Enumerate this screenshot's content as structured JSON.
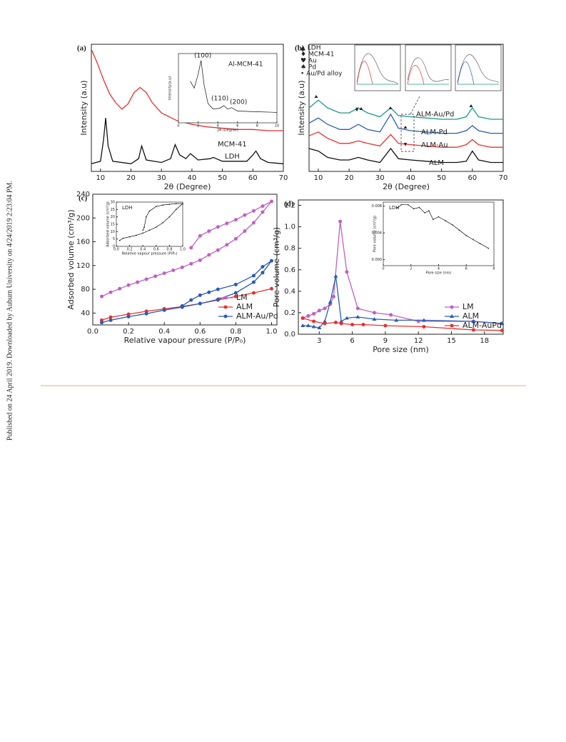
{
  "side_note": "Published on 24 April 2019. Downloaded by Auburn University on 4/24/2019 2:23:04 PM.",
  "chart_data": [
    {
      "type": "line",
      "panel_label": "(a)",
      "xlabel": "2θ (Degree)",
      "ylabel": "Intensity (a.u)",
      "xlim": [
        7,
        70
      ],
      "xticks": [
        10,
        20,
        30,
        40,
        50,
        60,
        70
      ],
      "ylim": [
        0,
        100
      ],
      "series": [
        {
          "name": "MCM-41",
          "color": "#e83030",
          "x": [
            7,
            9,
            11,
            13,
            15,
            17,
            19,
            21,
            23,
            25,
            27,
            30,
            35,
            40,
            45,
            50,
            55,
            60,
            65,
            70
          ],
          "values": [
            96,
            85,
            72,
            61,
            54,
            49,
            53,
            62,
            66,
            62,
            54,
            46,
            40,
            37,
            35,
            34,
            33,
            33,
            32,
            32
          ]
        },
        {
          "name": "LDH",
          "color": "#111111",
          "x": [
            7,
            10,
            11,
            11.7,
            12.5,
            14,
            20,
            22.5,
            23.5,
            25,
            30,
            33,
            34.5,
            36,
            38,
            39.5,
            42,
            46,
            47,
            50,
            58,
            60,
            61,
            62.5,
            65,
            70
          ],
          "values": [
            6,
            8,
            25,
            42,
            20,
            8,
            6,
            10,
            20,
            9,
            7,
            10,
            21,
            13,
            10,
            14,
            9,
            10,
            11,
            8,
            8,
            13,
            16,
            10,
            7,
            6
          ]
        }
      ],
      "inset": {
        "type": "line",
        "title": "Al-MCM-41",
        "xlabel": "2θ (Degree)",
        "ylabel": "Intensity(a.u)",
        "xlim": [
          0,
          10
        ],
        "xticks": [
          0,
          2,
          4,
          6,
          8,
          10
        ],
        "ylim": [
          0,
          100
        ],
        "annotations": [
          "(100)",
          "(110)",
          "(200)"
        ],
        "series": [
          {
            "color": "#111111",
            "x": [
              1.2,
              1.6,
              2.0,
              2.3,
              2.6,
              3.0,
              3.5,
              4.2,
              4.6,
              5.0,
              5.4,
              6,
              8,
              10
            ],
            "values": [
              60,
              50,
              70,
              90,
              55,
              28,
              20,
              21,
              25,
              20,
              22,
              17,
              16,
              15
            ]
          }
        ]
      }
    },
    {
      "type": "line",
      "panel_label": "(b)",
      "xlabel": "2θ (Degree)",
      "ylabel": "Intensity (a.u)",
      "xlim": [
        7,
        70
      ],
      "xticks": [
        10,
        20,
        30,
        40,
        50,
        60,
        70
      ],
      "ylim": [
        0,
        100
      ],
      "phase_legend": [
        "▲ LDH",
        "♦ MCM-41",
        "♥ Au",
        "♠ Pd",
        "• Au/Pd alloy"
      ],
      "series": [
        {
          "name": "ALM-Au/Pd",
          "color": "#1a9a8a",
          "x": [
            7,
            10,
            13,
            17,
            20,
            23,
            26,
            30,
            33.5,
            36,
            40,
            45,
            50,
            55,
            58,
            60,
            62,
            66,
            70
          ],
          "values": [
            50,
            56,
            50,
            46,
            46,
            50,
            46,
            43,
            50,
            44,
            43,
            42,
            41,
            41,
            43,
            50,
            43,
            41,
            41
          ]
        },
        {
          "name": "ALM-Pd",
          "color": "#2a5cb8",
          "x": [
            7,
            10,
            13,
            17,
            20,
            23,
            26,
            30,
            33.5,
            36,
            40,
            45,
            50,
            55,
            58,
            60,
            62,
            66,
            70
          ],
          "values": [
            38,
            42,
            37,
            33,
            33,
            37,
            33,
            31,
            45,
            34,
            32,
            31,
            30,
            30,
            32,
            36,
            32,
            30,
            30
          ]
        },
        {
          "name": "ALM-Au",
          "color": "#e83030",
          "x": [
            7,
            10,
            13,
            17,
            20,
            23,
            26,
            30,
            33.5,
            36,
            40,
            45,
            50,
            55,
            58,
            60,
            62,
            66,
            70
          ],
          "values": [
            28,
            31,
            26,
            22,
            22,
            24,
            22,
            20,
            29,
            22,
            21,
            20,
            19,
            19,
            21,
            25,
            21,
            19,
            19
          ]
        },
        {
          "name": "ALM",
          "color": "#111111",
          "x": [
            7,
            10,
            13,
            17,
            20,
            23,
            26,
            30,
            33.5,
            36,
            40,
            45,
            50,
            55,
            58,
            60,
            62,
            66,
            70
          ],
          "values": [
            18,
            16,
            11,
            9,
            9,
            11,
            9,
            7,
            18,
            10,
            9,
            8,
            7,
            7,
            8,
            16,
            9,
            7,
            7
          ]
        }
      ]
    },
    {
      "type": "line",
      "panel_label": "(c)",
      "xlabel": "Relative vapour pressure (P/P₀)",
      "ylabel": "Adsorbed volume (cm³/g)",
      "xlim": [
        0,
        1.03
      ],
      "xticks": [
        {
          "value": 0,
          "label": "0.0"
        },
        0.2,
        0.4,
        0.6,
        0.8,
        {
          "value": 1,
          "label": "1.0"
        }
      ],
      "ylim": [
        20,
        240
      ],
      "yticks": [
        40,
        80,
        120,
        160,
        200,
        240
      ],
      "legend": "lower right",
      "series": [
        {
          "name": "LM",
          "color": "#c060c0",
          "marker": "circle",
          "x": [
            0.05,
            0.1,
            0.15,
            0.2,
            0.25,
            0.3,
            0.35,
            0.4,
            0.45,
            0.5,
            0.55,
            0.6,
            0.65,
            0.7,
            0.75,
            0.8,
            0.85,
            0.9,
            0.95,
            1.0,
            0.95,
            0.9,
            0.85,
            0.8,
            0.75,
            0.7,
            0.65,
            0.6,
            0.55
          ],
          "values": [
            68,
            75,
            81,
            87,
            92,
            97,
            102,
            107,
            112,
            117,
            123,
            129,
            138,
            146,
            155,
            165,
            178,
            192,
            210,
            228,
            220,
            212,
            205,
            197,
            191,
            185,
            178,
            170,
            150
          ]
        },
        {
          "name": "ALM",
          "color": "#e83030",
          "marker": "circle",
          "x": [
            0.05,
            0.1,
            0.2,
            0.3,
            0.4,
            0.5,
            0.6,
            0.7,
            0.8,
            0.9,
            1.0
          ],
          "values": [
            28,
            33,
            38,
            43,
            47,
            51,
            56,
            62,
            68,
            74,
            81
          ]
        },
        {
          "name": "ALM-Au/Pd",
          "color": "#2a5cb8",
          "marker": "circle",
          "x": [
            0.05,
            0.1,
            0.2,
            0.3,
            0.4,
            0.5,
            0.6,
            0.7,
            0.8,
            0.9,
            0.95,
            1.0,
            0.95,
            0.9,
            0.8,
            0.7,
            0.65,
            0.6,
            0.55,
            0.5
          ],
          "values": [
            24,
            28,
            34,
            39,
            45,
            50,
            56,
            63,
            74,
            92,
            108,
            128,
            118,
            103,
            88,
            80,
            75,
            70,
            62,
            52
          ]
        }
      ],
      "inset": {
        "type": "line",
        "title": "LDH",
        "xlabel": "Relative vapour pressure (P/P₀)",
        "ylabel": "Adsorbed volume (cm³/g)",
        "xlim": [
          0,
          1
        ],
        "xticks": [
          {
            "value": 0,
            "label": "0.0"
          },
          0.2,
          0.4,
          0.6,
          0.8,
          {
            "value": 1,
            "label": "1.0"
          }
        ],
        "ylim": [
          0,
          30
        ],
        "yticks": [
          0,
          5,
          10,
          15,
          20,
          25,
          30
        ],
        "series": [
          {
            "color": "#111111",
            "marker": "dot",
            "x": [
              0.05,
              0.1,
              0.2,
              0.3,
              0.4,
              0.5,
              0.6,
              0.7,
              0.8,
              0.9,
              1.0,
              0.9,
              0.8,
              0.7,
              0.6,
              0.5,
              0.45,
              0.42,
              0.4
            ],
            "values": [
              4,
              5.5,
              6.5,
              7.5,
              9,
              11,
              13,
              16,
              20,
              25,
              29,
              29,
              28.5,
              28,
              27,
              24,
              20,
              13,
              11
            ]
          }
        ]
      }
    },
    {
      "type": "line",
      "panel_label": "(d)",
      "xlabel": "Pore size (nm)",
      "ylabel": "Pore volume (cm³/g)",
      "xlim": [
        1.1,
        19.7
      ],
      "xticks": [
        3,
        6,
        9,
        12,
        15,
        18
      ],
      "ylim": [
        0,
        1.25
      ],
      "yticks": [
        {
          "value": 0,
          "label": "0.0"
        },
        0.2,
        0.4,
        0.6,
        0.8,
        {
          "value": 1,
          "label": "1.0"
        },
        1.2
      ],
      "legend": "lower right",
      "series": [
        {
          "name": "LM",
          "color": "#c060c0",
          "marker": "circle",
          "x": [
            1.5,
            2,
            2.5,
            3,
            3.5,
            4,
            4.3,
            4.9,
            5.5,
            6.5,
            8,
            9.5,
            12,
            17,
            19.6
          ],
          "values": [
            0.15,
            0.17,
            0.19,
            0.22,
            0.24,
            0.28,
            0.35,
            1.05,
            0.58,
            0.24,
            0.2,
            0.18,
            0.12,
            0.12,
            0.1
          ]
        },
        {
          "name": "ALM",
          "color": "#2a5cb8",
          "marker": "triangle",
          "x": [
            1.5,
            2,
            2.5,
            3,
            3.5,
            4,
            4.5,
            5,
            5.5,
            6.5,
            8,
            10,
            12.5,
            17,
            19.6
          ],
          "values": [
            0.08,
            0.08,
            0.07,
            0.06,
            0.12,
            0.3,
            0.54,
            0.12,
            0.15,
            0.16,
            0.14,
            0.13,
            0.13,
            0.12,
            0.1
          ]
        },
        {
          "name": "ALM-AuPd",
          "color": "#e83030",
          "marker": "circle",
          "x": [
            1.5,
            2.5,
            3.5,
            4.5,
            5,
            6,
            7,
            9,
            12.5,
            17,
            19.6
          ],
          "values": [
            0.15,
            0.12,
            0.1,
            0.11,
            0.1,
            0.09,
            0.09,
            0.08,
            0.07,
            0.04,
            0.035
          ]
        }
      ],
      "inset": {
        "type": "line",
        "title": "LDH",
        "xlabel": "Pore size (nm)",
        "ylabel": "Pore volume (cm³/g)",
        "xlim": [
          0,
          8
        ],
        "xticks": [
          0,
          2,
          4,
          6,
          8
        ],
        "ylim": [
          -0.0009,
          0.0086
        ],
        "yticks": [
          {
            "value": 0,
            "label": "0.000"
          },
          {
            "value": 0.004,
            "label": "0.004"
          },
          {
            "value": 0.008,
            "label": "0.008"
          }
        ],
        "series": [
          {
            "color": "#111111",
            "marker": "dot",
            "x": [
              1,
              1.3,
              1.8,
              2.2,
              2.6,
              3,
              3.3,
              3.6,
              4,
              4.5,
              5,
              5.5,
              6,
              6.5,
              7,
              7.6
            ],
            "values": [
              0.0077,
              0.0082,
              0.0082,
              0.0076,
              0.0078,
              0.007,
              0.0073,
              0.006,
              0.0064,
              0.0058,
              0.0052,
              0.0044,
              0.0036,
              0.003,
              0.0024,
              0.0017
            ]
          }
        ]
      }
    }
  ]
}
